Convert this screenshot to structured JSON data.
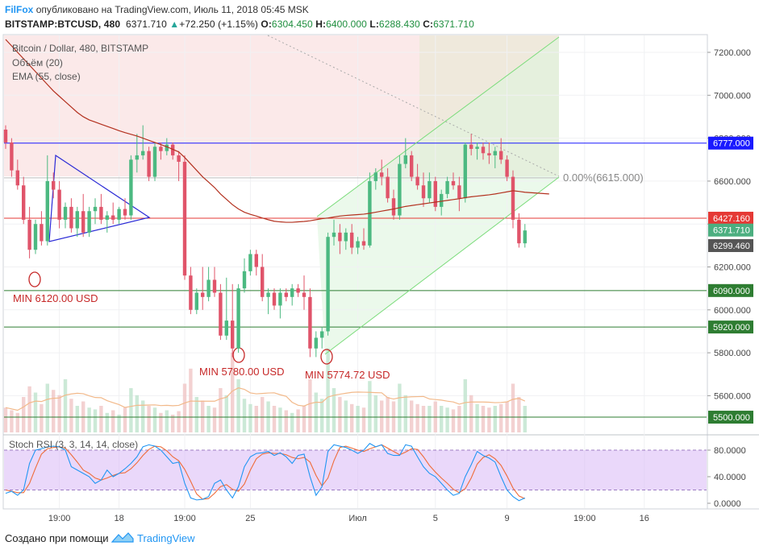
{
  "header": {
    "brand": "FilFox",
    "published": "опубликовано на TradingView.com, Июль 11, 2018 05:45 MSK",
    "symbol": "BITSTAMP:BTCUSD, 480",
    "last": "6371.710",
    "change": "+72.250 (+1.15%)",
    "o_label": "O:",
    "o_val": "6304.450",
    "h_label": "H:",
    "h_val": "6400.000",
    "l_label": "L:",
    "l_val": "6288.430",
    "c_label": "C:",
    "c_val": "6371.710"
  },
  "legend": {
    "title": "Bitcoin / Dollar, 480, BITSTAMP",
    "volume": "Объём (20)",
    "ema": "EMA (55, close)",
    "stoch": "Stoch RSI (3, 3, 14, 14, close)"
  },
  "annotations": {
    "min1": "MIN 6120.00 USD",
    "min2": "MIN 5780.00 USD",
    "min3": "MIN 5774.72 USD",
    "fib": "0.00%(6615.000)"
  },
  "price_tags": [
    {
      "label": "6777.000",
      "value": 6777,
      "color": "#1a1aff"
    },
    {
      "label": "6427.160",
      "value": 6427.16,
      "color": "#e53935"
    },
    {
      "label": "6371.710",
      "value": 6371.71,
      "color": "#4caf80"
    },
    {
      "label": "6299.460",
      "value": 6299.46,
      "color": "#555555"
    },
    {
      "label": "6090.000",
      "value": 6090,
      "color": "#2e7d32"
    },
    {
      "label": "5920.000",
      "value": 5920,
      "color": "#2e7d32"
    },
    {
      "label": "5500.000",
      "value": 5500,
      "color": "#2e7d32"
    }
  ],
  "footer": {
    "made_with": "Создано при помощи",
    "brand": "TradingView"
  },
  "colors": {
    "bull": "#4cb981",
    "bear": "#e0546a",
    "ema": "#b3311f",
    "stoch_k": "#2196f3",
    "stoch_d": "#ef6c3a",
    "stoch_band": "#d9b8f5"
  },
  "chart_data": {
    "type": "candlestick",
    "interval": "480",
    "y_ticks": [
      "7200.000",
      "7000.000",
      "6800.000",
      "6600.000",
      "6400.000",
      "6200.000",
      "6000.000",
      "5800.000",
      "5600.000"
    ],
    "y_tick_values": [
      7200,
      7000,
      6800,
      6600,
      6400,
      6200,
      6000,
      5800,
      5600
    ],
    "x_ticks": [
      "19:00",
      "18",
      "19:00",
      "25",
      "Июл",
      "5",
      "9",
      "19:00",
      "16"
    ],
    "x_tick_bars": [
      9,
      19,
      30,
      41,
      59,
      72,
      84,
      97,
      107
    ],
    "stoch_ticks": [
      "80.0000",
      "40.0000",
      "0.0000"
    ],
    "stoch_tick_values": [
      80,
      40,
      0
    ],
    "horizontal_levels": [
      6777,
      6427.16,
      6090,
      5920,
      5500
    ],
    "candles": [
      [
        6840,
        6860,
        6750,
        6780
      ],
      [
        6780,
        6800,
        6620,
        6650
      ],
      [
        6650,
        6700,
        6560,
        6580
      ],
      [
        6580,
        6620,
        6400,
        6420
      ],
      [
        6420,
        6480,
        6240,
        6280
      ],
      [
        6280,
        6420,
        6260,
        6400
      ],
      [
        6400,
        6460,
        6300,
        6320
      ],
      [
        6320,
        6720,
        6300,
        6600
      ],
      [
        6600,
        6640,
        6520,
        6560
      ],
      [
        6560,
        6600,
        6380,
        6420
      ],
      [
        6420,
        6500,
        6380,
        6480
      ],
      [
        6480,
        6520,
        6360,
        6380
      ],
      [
        6380,
        6480,
        6340,
        6460
      ],
      [
        6460,
        6540,
        6340,
        6360
      ],
      [
        6360,
        6480,
        6340,
        6460
      ],
      [
        6460,
        6520,
        6400,
        6480
      ],
      [
        6480,
        6540,
        6400,
        6420
      ],
      [
        6420,
        6460,
        6360,
        6440
      ],
      [
        6440,
        6500,
        6400,
        6420
      ],
      [
        6420,
        6480,
        6400,
        6470
      ],
      [
        6470,
        6520,
        6420,
        6440
      ],
      [
        6440,
        6720,
        6420,
        6700
      ],
      [
        6700,
        6820,
        6640,
        6720
      ],
      [
        6720,
        6860,
        6700,
        6740
      ],
      [
        6740,
        6760,
        6600,
        6620
      ],
      [
        6620,
        6780,
        6600,
        6760
      ],
      [
        6760,
        6780,
        6700,
        6740
      ],
      [
        6740,
        6800,
        6720,
        6770
      ],
      [
        6770,
        6780,
        6700,
        6720
      ],
      [
        6720,
        6740,
        6600,
        6690
      ],
      [
        6690,
        6720,
        6140,
        6160
      ],
      [
        6160,
        6200,
        5980,
        6000
      ],
      [
        6000,
        6100,
        5980,
        6080
      ],
      [
        6080,
        6200,
        6000,
        6060
      ],
      [
        6060,
        6200,
        6040,
        6140
      ],
      [
        6140,
        6200,
        6060,
        6080
      ],
      [
        6080,
        6120,
        5860,
        5880
      ],
      [
        5880,
        6150,
        5860,
        5950
      ],
      [
        5950,
        6120,
        5780,
        5820
      ],
      [
        5820,
        6120,
        5800,
        6100
      ],
      [
        6100,
        6240,
        6080,
        6180
      ],
      [
        6180,
        6280,
        6160,
        6260
      ],
      [
        6260,
        6280,
        6160,
        6200
      ],
      [
        6200,
        6260,
        6040,
        6060
      ],
      [
        6060,
        6100,
        5980,
        6080
      ],
      [
        6080,
        6100,
        6000,
        6020
      ],
      [
        6020,
        6100,
        5960,
        6080
      ],
      [
        6080,
        6100,
        6040,
        6060
      ],
      [
        6060,
        6120,
        6020,
        6100
      ],
      [
        6100,
        6120,
        6060,
        6080
      ],
      [
        6080,
        6160,
        6000,
        6060
      ],
      [
        6060,
        6100,
        5780,
        5820
      ],
      [
        5820,
        5900,
        5780,
        5870
      ],
      [
        5870,
        5920,
        5820,
        5900
      ],
      [
        5900,
        6360,
        5880,
        6340
      ],
      [
        6340,
        6420,
        6300,
        6360
      ],
      [
        6360,
        6400,
        6260,
        6320
      ],
      [
        6320,
        6380,
        6280,
        6360
      ],
      [
        6360,
        6400,
        6260,
        6290
      ],
      [
        6290,
        6340,
        6260,
        6320
      ],
      [
        6320,
        6380,
        6280,
        6300
      ],
      [
        6300,
        6640,
        6290,
        6600
      ],
      [
        6600,
        6660,
        6560,
        6640
      ],
      [
        6640,
        6700,
        6580,
        6620
      ],
      [
        6620,
        6660,
        6500,
        6520
      ],
      [
        6520,
        6560,
        6420,
        6440
      ],
      [
        6440,
        6720,
        6420,
        6680
      ],
      [
        6680,
        6800,
        6660,
        6720
      ],
      [
        6720,
        6740,
        6600,
        6620
      ],
      [
        6620,
        6680,
        6560,
        6580
      ],
      [
        6580,
        6640,
        6480,
        6520
      ],
      [
        6520,
        6640,
        6500,
        6600
      ],
      [
        6600,
        6620,
        6460,
        6480
      ],
      [
        6480,
        6560,
        6440,
        6540
      ],
      [
        6540,
        6620,
        6520,
        6600
      ],
      [
        6600,
        6640,
        6560,
        6580
      ],
      [
        6580,
        6620,
        6460,
        6520
      ],
      [
        6520,
        6780,
        6500,
        6770
      ],
      [
        6770,
        6820,
        6720,
        6750
      ],
      [
        6750,
        6780,
        6700,
        6760
      ],
      [
        6760,
        6780,
        6700,
        6730
      ],
      [
        6730,
        6780,
        6680,
        6720
      ],
      [
        6720,
        6760,
        6660,
        6740
      ],
      [
        6740,
        6800,
        6680,
        6700
      ],
      [
        6700,
        6720,
        6600,
        6620
      ],
      [
        6620,
        6650,
        6380,
        6420
      ],
      [
        6420,
        6450,
        6290,
        6310
      ],
      [
        6310,
        6400,
        6290,
        6370
      ]
    ],
    "volume_levels": [
      0.28,
      0.25,
      0.22,
      0.4,
      0.52,
      0.45,
      0.32,
      0.55,
      0.48,
      0.42,
      0.6,
      0.38,
      0.3,
      0.35,
      0.28,
      0.26,
      0.3,
      0.22,
      0.25,
      0.2,
      0.28,
      0.5,
      0.42,
      0.36,
      0.3,
      0.28,
      0.22,
      0.25,
      0.2,
      0.24,
      0.55,
      0.72,
      0.4,
      0.36,
      0.3,
      0.28,
      0.5,
      0.42,
      0.9,
      0.6,
      0.38,
      0.32,
      0.3,
      0.4,
      0.35,
      0.3,
      0.28,
      0.25,
      0.22,
      0.26,
      0.3,
      0.6,
      0.45,
      0.38,
      0.95,
      0.5,
      0.4,
      0.36,
      0.32,
      0.3,
      0.28,
      0.58,
      0.42,
      0.36,
      0.4,
      0.35,
      0.55,
      0.42,
      0.36,
      0.32,
      0.3,
      0.3,
      0.35,
      0.3,
      0.28,
      0.26,
      0.3,
      0.6,
      0.42,
      0.32,
      0.3,
      0.28,
      0.3,
      0.32,
      0.35,
      0.55,
      0.4,
      0.3
    ],
    "ema": [
      7260,
      7230,
      7200,
      7170,
      7140,
      7110,
      7080,
      7050,
      7020,
      6995,
      6970,
      6945,
      6920,
      6900,
      6885,
      6875,
      6865,
      6855,
      6845,
      6835,
      6826,
      6818,
      6810,
      6800,
      6790,
      6780,
      6770,
      6760,
      6748,
      6736,
      6710,
      6680,
      6650,
      6620,
      6595,
      6570,
      6540,
      6515,
      6490,
      6470,
      6455,
      6445,
      6437,
      6428,
      6420,
      6413,
      6410,
      6408,
      6408,
      6410,
      6412,
      6415,
      6420,
      6425,
      6428,
      6433,
      6437,
      6440,
      6442,
      6444,
      6446,
      6450,
      6455,
      6460,
      6465,
      6470,
      6476,
      6482,
      6486,
      6490,
      6494,
      6498,
      6502,
      6506,
      6510,
      6514,
      6518,
      6523,
      6527,
      6530,
      6533,
      6536,
      6540,
      6545,
      6550,
      6555,
      6552,
      6548
    ],
    "stoch_k": [
      15,
      18,
      12,
      20,
      60,
      80,
      82,
      85,
      86,
      85,
      80,
      55,
      50,
      45,
      40,
      30,
      35,
      50,
      40,
      45,
      52,
      60,
      70,
      85,
      88,
      86,
      80,
      70,
      60,
      62,
      30,
      8,
      5,
      6,
      10,
      30,
      35,
      20,
      8,
      25,
      55,
      70,
      75,
      76,
      78,
      72,
      76,
      70,
      60,
      72,
      74,
      40,
      12,
      25,
      78,
      88,
      86,
      84,
      80,
      75,
      80,
      90,
      85,
      88,
      75,
      72,
      72,
      88,
      86,
      70,
      55,
      45,
      40,
      30,
      20,
      12,
      15,
      40,
      58,
      78,
      72,
      68,
      62,
      40,
      20,
      10,
      4,
      8
    ],
    "stoch_d": [
      20,
      18,
      16,
      16,
      30,
      53,
      74,
      82,
      84,
      85,
      83,
      73,
      62,
      50,
      45,
      38,
      35,
      38,
      42,
      45,
      46,
      52,
      61,
      72,
      81,
      86,
      85,
      79,
      70,
      64,
      51,
      33,
      14,
      6,
      7,
      15,
      25,
      28,
      21,
      18,
      29,
      50,
      67,
      74,
      76,
      75,
      75,
      73,
      69,
      67,
      69,
      62,
      42,
      26,
      38,
      64,
      84,
      86,
      83,
      80,
      78,
      82,
      85,
      88,
      83,
      78,
      73,
      77,
      82,
      81,
      70,
      57,
      47,
      38,
      30,
      21,
      16,
      22,
      38,
      59,
      69,
      73,
      67,
      57,
      41,
      23,
      11,
      7
    ]
  }
}
